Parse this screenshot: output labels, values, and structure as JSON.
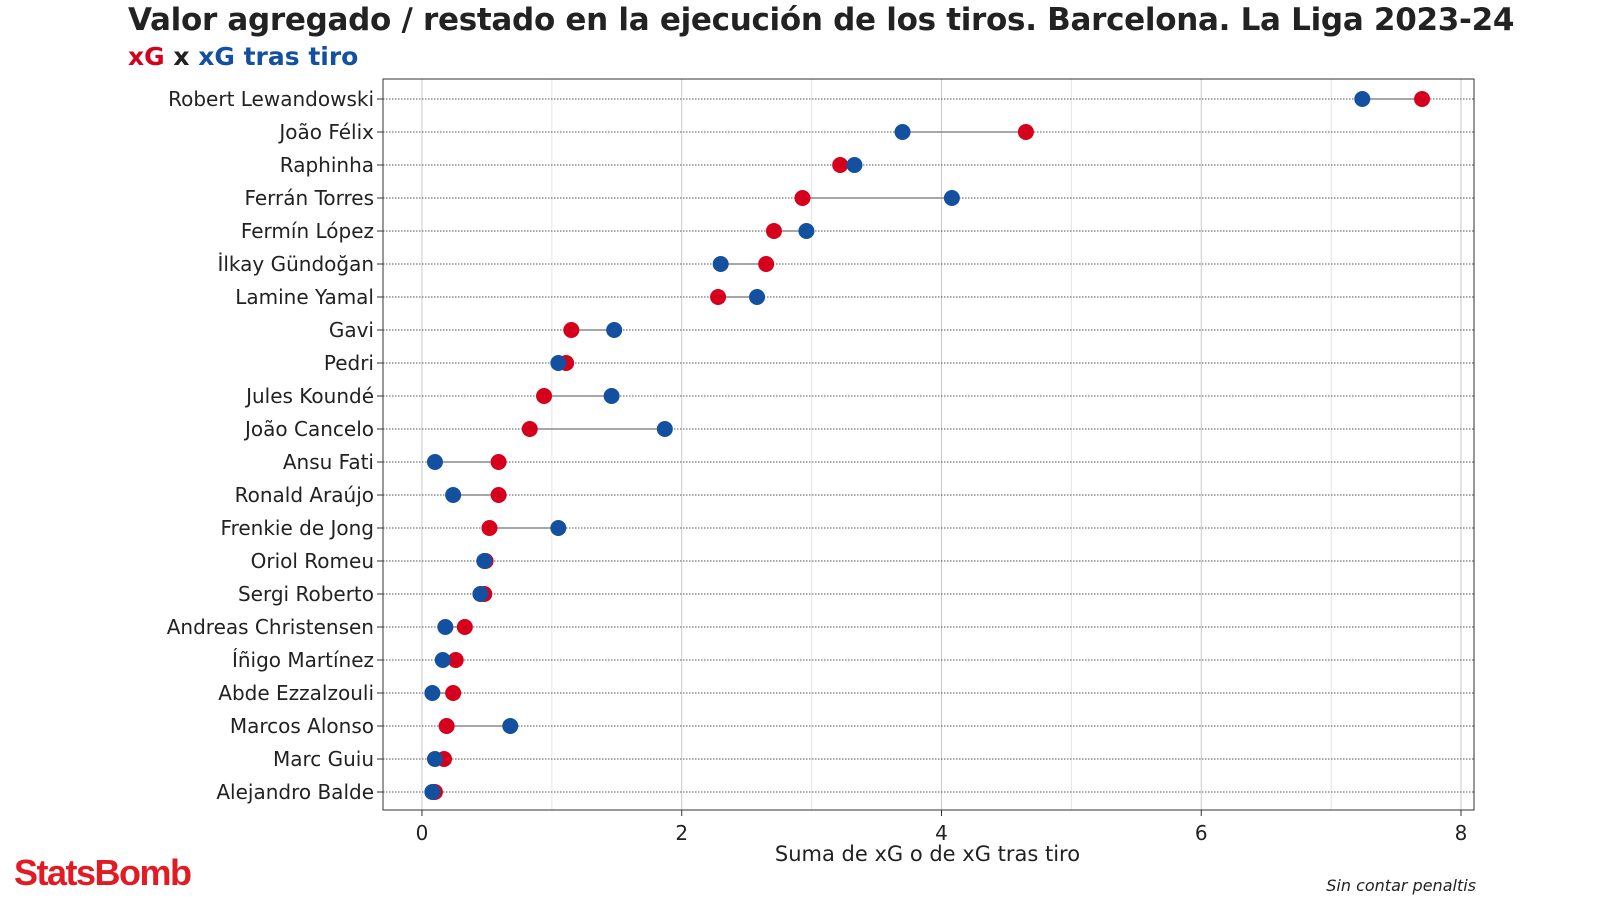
{
  "header": {
    "title": "Valor agregado / restado en la ejecución de los tiros. Barcelona. La Liga 2023-24",
    "subtitle_xg": "xG",
    "subtitle_x": "x",
    "subtitle_psxg": "xG tras tiro"
  },
  "footer": {
    "logo": "StatsBomb",
    "note": "Sin contar penaltis"
  },
  "colors": {
    "xg": "#d6001c",
    "psxg": "#1350a0",
    "logo": "#e21a23"
  },
  "chart_data": {
    "type": "scatter",
    "subtype": "dumbbell",
    "xlabel": "Suma de xG o de xG tras tiro",
    "ylabel": "",
    "xlim": [
      -0.3,
      8.1
    ],
    "xticks": [
      0,
      2,
      4,
      6,
      8
    ],
    "grid": true,
    "legend": "subtitle",
    "series_names": [
      "xG",
      "xG tras tiro"
    ],
    "categories": [
      "Robert Lewandowski",
      "João Félix",
      "Raphinha",
      "Ferrán Torres",
      "Fermín López",
      "İlkay Gündoğan",
      "Lamine Yamal",
      "Gavi",
      "Pedri",
      "Jules Koundé",
      "João Cancelo",
      "Ansu Fati",
      "Ronald Araújo",
      "Frenkie de Jong",
      "Oriol Romeu",
      "Sergi Roberto",
      "Andreas Christensen",
      "Íñigo Martínez",
      "Abde Ezzalzouli",
      "Marcos Alonso",
      "Marc Guiu",
      "Alejandro Balde"
    ],
    "xg": [
      7.7,
      4.65,
      3.22,
      2.93,
      2.71,
      2.65,
      2.28,
      1.15,
      1.11,
      0.94,
      0.83,
      0.59,
      0.59,
      0.52,
      0.49,
      0.48,
      0.33,
      0.26,
      0.24,
      0.19,
      0.17,
      0.1
    ],
    "psxg": [
      7.24,
      3.7,
      3.33,
      4.08,
      2.96,
      2.3,
      2.58,
      1.48,
      1.05,
      1.46,
      1.87,
      0.1,
      0.24,
      1.05,
      0.48,
      0.45,
      0.18,
      0.16,
      0.08,
      0.68,
      0.1,
      0.08
    ]
  }
}
